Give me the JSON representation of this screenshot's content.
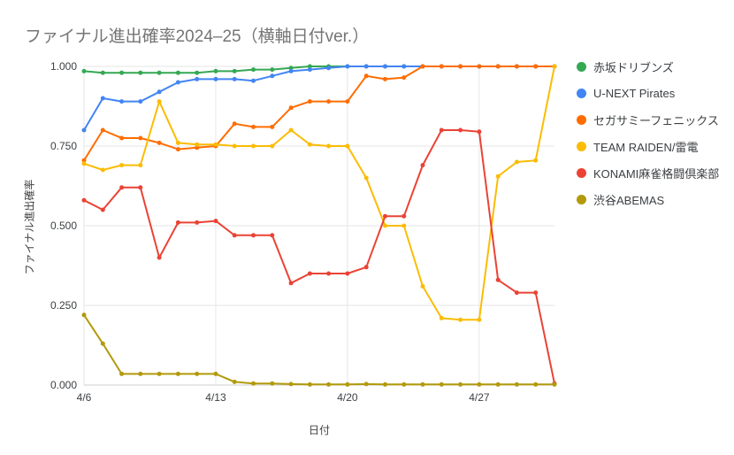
{
  "chart_data": {
    "type": "line",
    "title": "ファイナル進出確率2024–25（横軸日付ver.）",
    "xlabel": "日付",
    "ylabel": "ファイナル進出確率",
    "ylim": [
      0.0,
      1.0
    ],
    "grid": true,
    "legend_position": "right",
    "x": [
      "4/6",
      "4/7",
      "4/8",
      "4/9",
      "4/10",
      "4/11",
      "4/12",
      "4/13",
      "4/14",
      "4/15",
      "4/16",
      "4/17",
      "4/18",
      "4/19",
      "4/20",
      "4/21",
      "4/22",
      "4/23",
      "4/24",
      "4/25",
      "4/26",
      "4/27",
      "4/28",
      "4/29",
      "4/30",
      "5/1"
    ],
    "x_ticks": [
      {
        "label": "4/6",
        "index": 0
      },
      {
        "label": "4/13",
        "index": 7
      },
      {
        "label": "4/20",
        "index": 14
      },
      {
        "label": "4/27",
        "index": 21
      }
    ],
    "y_ticks": [
      {
        "label": "0.000",
        "value": 0.0
      },
      {
        "label": "0.250",
        "value": 0.25
      },
      {
        "label": "0.500",
        "value": 0.5
      },
      {
        "label": "0.750",
        "value": 0.75
      },
      {
        "label": "1.000",
        "value": 1.0
      }
    ],
    "series": [
      {
        "name": "赤坂ドリブンズ",
        "color": "#34A853",
        "values": [
          0.985,
          0.98,
          0.98,
          0.98,
          0.98,
          0.98,
          0.98,
          0.985,
          0.985,
          0.99,
          0.99,
          0.995,
          1.0,
          1.0,
          1.0,
          1.0,
          1.0,
          1.0,
          1.0,
          1.0,
          1.0,
          1.0,
          1.0,
          1.0,
          1.0,
          1.0
        ]
      },
      {
        "name": "U-NEXT Pirates",
        "color": "#4285F4",
        "values": [
          0.8,
          0.9,
          0.89,
          0.89,
          0.92,
          0.95,
          0.96,
          0.96,
          0.96,
          0.955,
          0.97,
          0.985,
          0.99,
          0.995,
          1.0,
          1.0,
          1.0,
          1.0,
          1.0,
          1.0,
          1.0,
          1.0,
          1.0,
          1.0,
          1.0,
          1.0
        ]
      },
      {
        "name": "セガサミーフェニックス",
        "color": "#FF6D01",
        "values": [
          0.705,
          0.8,
          0.775,
          0.775,
          0.76,
          0.74,
          0.745,
          0.75,
          0.82,
          0.81,
          0.81,
          0.87,
          0.89,
          0.89,
          0.89,
          0.97,
          0.96,
          0.965,
          1.0,
          1.0,
          1.0,
          1.0,
          1.0,
          1.0,
          1.0,
          1.0
        ]
      },
      {
        "name": "TEAM RAIDEN/雷電",
        "color": "#FBBC04",
        "values": [
          0.695,
          0.675,
          0.69,
          0.69,
          0.89,
          0.76,
          0.755,
          0.755,
          0.75,
          0.75,
          0.75,
          0.8,
          0.755,
          0.75,
          0.75,
          0.65,
          0.5,
          0.5,
          0.31,
          0.21,
          0.205,
          0.205,
          0.655,
          0.7,
          0.705,
          1.0
        ]
      },
      {
        "name": "KONAMI麻雀格闘倶楽部",
        "color": "#EA4335",
        "values": [
          0.58,
          0.55,
          0.62,
          0.62,
          0.4,
          0.51,
          0.51,
          0.515,
          0.47,
          0.47,
          0.47,
          0.32,
          0.35,
          0.35,
          0.35,
          0.37,
          0.53,
          0.53,
          0.69,
          0.8,
          0.8,
          0.795,
          0.33,
          0.29,
          0.29,
          0.005
        ]
      },
      {
        "name": "渋谷ABEMAS",
        "color": "#B29A0B",
        "values": [
          0.22,
          0.13,
          0.035,
          0.035,
          0.035,
          0.035,
          0.035,
          0.035,
          0.01,
          0.005,
          0.005,
          0.003,
          0.002,
          0.002,
          0.002,
          0.003,
          0.002,
          0.002,
          0.002,
          0.002,
          0.002,
          0.002,
          0.002,
          0.002,
          0.002,
          0.002
        ]
      }
    ]
  }
}
